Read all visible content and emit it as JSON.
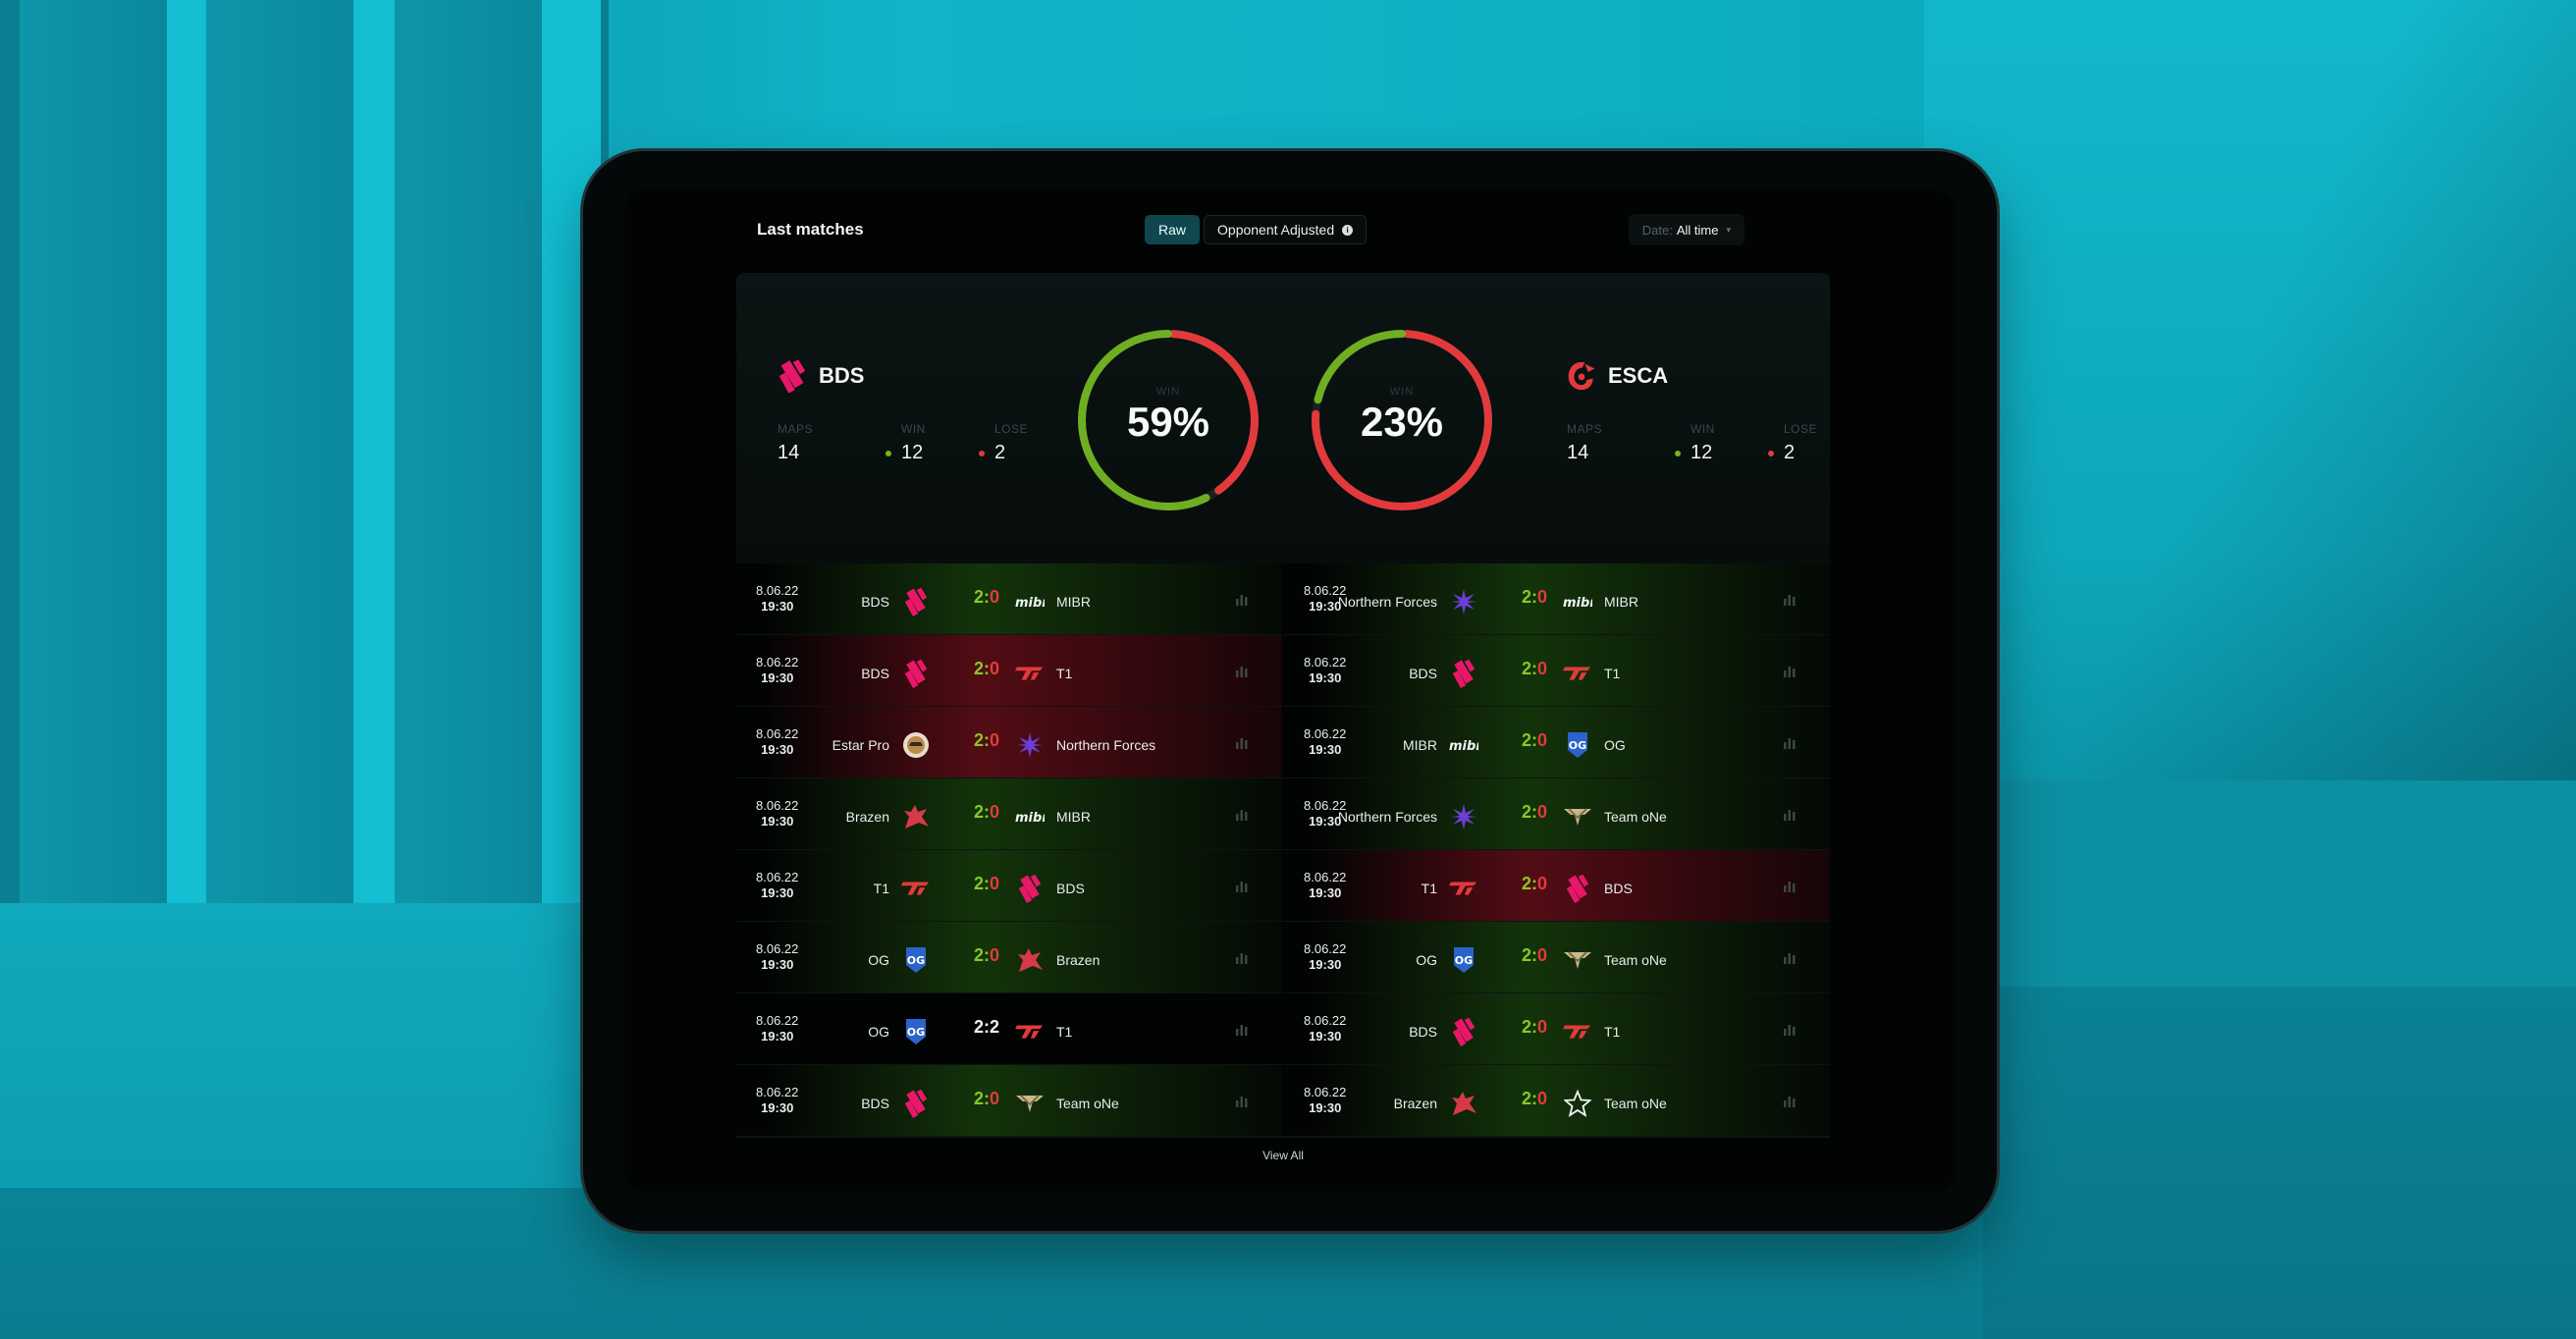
{
  "header": {
    "title": "Last matches",
    "toggle": {
      "raw": "Raw",
      "adjusted": "Opponent Adjusted",
      "info": "i"
    },
    "date_filter": {
      "label": "Date:",
      "value": "All time"
    }
  },
  "summary": {
    "labels": {
      "maps": "MAPS",
      "win": "WIN",
      "lose": "LOSE",
      "gauge": "WIN"
    },
    "team_a": {
      "name": "BDS",
      "maps": "14",
      "win": "12",
      "lose": "2",
      "win_pct": "59%",
      "win_fraction": 0.59
    },
    "team_b": {
      "name": "ESCA",
      "maps": "14",
      "win": "12",
      "lose": "2",
      "win_pct": "23%",
      "win_fraction": 0.23
    }
  },
  "colors": {
    "win": "#74b81e",
    "loss": "#e23a3c",
    "accent": "#10474e"
  },
  "matches": {
    "left": [
      {
        "date": "8.06.22",
        "time": "19:30",
        "home": "BDS",
        "home_logo": "bds",
        "s1": "2",
        "s2": "0",
        "away": "MIBR",
        "away_logo": "mibr",
        "result": "win"
      },
      {
        "date": "8.06.22",
        "time": "19:30",
        "home": "BDS",
        "home_logo": "bds",
        "s1": "2",
        "s2": "0",
        "away": "T1",
        "away_logo": "t1",
        "result": "loss"
      },
      {
        "date": "8.06.22",
        "time": "19:30",
        "home": "Estar Pro",
        "home_logo": "estar",
        "s1": "2",
        "s2": "0",
        "away": "Northern Forces",
        "away_logo": "nf",
        "result": "loss"
      },
      {
        "date": "8.06.22",
        "time": "19:30",
        "home": "Brazen",
        "home_logo": "brazen",
        "s1": "2",
        "s2": "0",
        "away": "MIBR",
        "away_logo": "mibr",
        "result": "win"
      },
      {
        "date": "8.06.22",
        "time": "19:30",
        "home": "T1",
        "home_logo": "t1",
        "s1": "2",
        "s2": "0",
        "away": "BDS",
        "away_logo": "bds",
        "result": "win"
      },
      {
        "date": "8.06.22",
        "time": "19:30",
        "home": "OG",
        "home_logo": "og",
        "s1": "2",
        "s2": "0",
        "away": "Brazen",
        "away_logo": "brazen",
        "result": "win"
      },
      {
        "date": "8.06.22",
        "time": "19:30",
        "home": "OG",
        "home_logo": "og",
        "s1": "2",
        "s2": "2",
        "away": "T1",
        "away_logo": "t1",
        "result": "draw"
      },
      {
        "date": "8.06.22",
        "time": "19:30",
        "home": "BDS",
        "home_logo": "bds",
        "s1": "2",
        "s2": "0",
        "away": "Team oNe",
        "away_logo": "teamone",
        "result": "win"
      }
    ],
    "right": [
      {
        "date": "8.06.22",
        "time": "19:30",
        "home": "Northern Forces",
        "home_logo": "nf",
        "s1": "2",
        "s2": "0",
        "away": "MIBR",
        "away_logo": "mibr",
        "result": "win"
      },
      {
        "date": "8.06.22",
        "time": "19:30",
        "home": "BDS",
        "home_logo": "bds",
        "s1": "2",
        "s2": "0",
        "away": "T1",
        "away_logo": "t1",
        "result": "win"
      },
      {
        "date": "8.06.22",
        "time": "19:30",
        "home": "MIBR",
        "home_logo": "mibr",
        "s1": "2",
        "s2": "0",
        "away": "OG",
        "away_logo": "og",
        "result": "win"
      },
      {
        "date": "8.06.22",
        "time": "19:30",
        "home": "Northern Forces",
        "home_logo": "nf",
        "s1": "2",
        "s2": "0",
        "away": "Team oNe",
        "away_logo": "teamone",
        "result": "win"
      },
      {
        "date": "8.06.22",
        "time": "19:30",
        "home": "T1",
        "home_logo": "t1",
        "s1": "2",
        "s2": "0",
        "away": "BDS",
        "away_logo": "bds",
        "result": "loss"
      },
      {
        "date": "8.06.22",
        "time": "19:30",
        "home": "OG",
        "home_logo": "og",
        "s1": "2",
        "s2": "0",
        "away": "Team oNe",
        "away_logo": "teamone",
        "result": "win"
      },
      {
        "date": "8.06.22",
        "time": "19:30",
        "home": "BDS",
        "home_logo": "bds",
        "s1": "2",
        "s2": "0",
        "away": "T1",
        "away_logo": "t1",
        "result": "win"
      },
      {
        "date": "8.06.22",
        "time": "19:30",
        "home": "Brazen",
        "home_logo": "brazen",
        "s1": "2",
        "s2": "0",
        "away": "Team oNe",
        "away_logo": "star",
        "result": "win"
      }
    ]
  },
  "footer": {
    "view_all": "View All"
  }
}
